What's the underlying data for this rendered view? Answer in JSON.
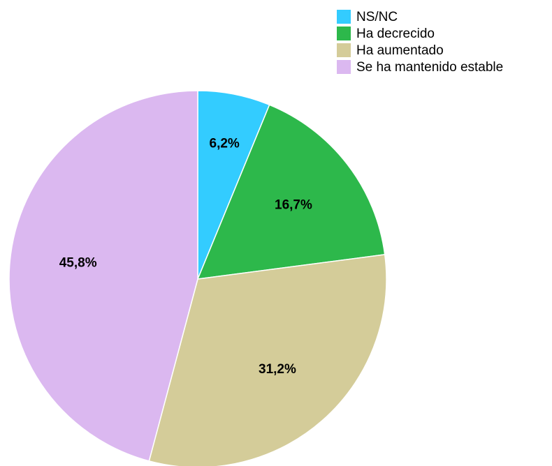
{
  "chart_data": {
    "type": "pie",
    "categories": [
      "NS/NC",
      "Ha decrecido",
      "Ha aumentado",
      "Se ha mantenido estable"
    ],
    "values": [
      6.2,
      16.7,
      31.2,
      45.8
    ],
    "value_labels": [
      "6,2%",
      "16,7%",
      "31,2%",
      "45,8%"
    ],
    "colors": [
      "#33ccff",
      "#2db84b",
      "#d4cc99",
      "#dbb8f0"
    ],
    "legend": "upper right"
  }
}
